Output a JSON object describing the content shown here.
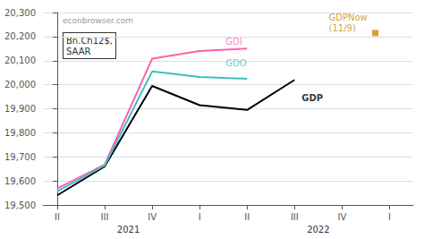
{
  "chart_data": {
    "type": "line",
    "xlim": [
      -0.3,
      7.5
    ],
    "xticks": [
      {
        "value": 0,
        "label": "II"
      },
      {
        "value": 1,
        "label": "III"
      },
      {
        "value": 2,
        "label": "IV"
      },
      {
        "value": 3,
        "label": "I"
      },
      {
        "value": 4,
        "label": "II"
      },
      {
        "value": 5,
        "label": "III"
      },
      {
        "value": 6,
        "label": "IV"
      },
      {
        "value": 7,
        "label": "I"
      }
    ],
    "year_labels": [
      {
        "value": 1.5,
        "label": "2021"
      },
      {
        "value": 5.5,
        "label": "2022"
      }
    ],
    "ylim": [
      19500,
      20300
    ],
    "yticks": [
      {
        "value": 19500,
        "label": "19,500"
      },
      {
        "value": 19600,
        "label": "19,600"
      },
      {
        "value": 19700,
        "label": "19,700"
      },
      {
        "value": 19800,
        "label": "19,800"
      },
      {
        "value": 19900,
        "label": "19,900"
      },
      {
        "value": 20000,
        "label": "20,000"
      },
      {
        "value": 20100,
        "label": "20,100"
      },
      {
        "value": 20200,
        "label": "20,200"
      },
      {
        "value": 20300,
        "label": "20,300"
      }
    ],
    "grid": true,
    "watermark": "econbrowser.com",
    "box_label": "Bn.Ch12$,\nSAAR",
    "series": [
      {
        "name": "GDP",
        "type": "line",
        "color": "#000000",
        "x": [
          0,
          1,
          2,
          3,
          4,
          5
        ],
        "values": [
          19540,
          19660,
          19995,
          19915,
          19895,
          20020
        ],
        "label_x": 5.15,
        "label_y": 19945
      },
      {
        "name": "GDI",
        "type": "line",
        "color": "#ff5faa",
        "x": [
          0,
          1,
          2,
          3,
          4
        ],
        "values": [
          19568,
          19668,
          20108,
          20140,
          20150
        ],
        "label_x": 3.55,
        "label_y": 20178
      },
      {
        "name": "GDO",
        "type": "line",
        "color": "#3fbfbf",
        "x": [
          0,
          1,
          2,
          3,
          4
        ],
        "values": [
          19556,
          19664,
          20055,
          20032,
          20025
        ],
        "label_x": 3.55,
        "label_y": 20088
      },
      {
        "name": "GDPNow\n(11/9)",
        "type": "scatter",
        "marker": "square",
        "color": "#cc8800",
        "x": [
          6.7
        ],
        "values": [
          20215
        ],
        "label_x": 5.72,
        "label_y": 20258
      }
    ]
  }
}
